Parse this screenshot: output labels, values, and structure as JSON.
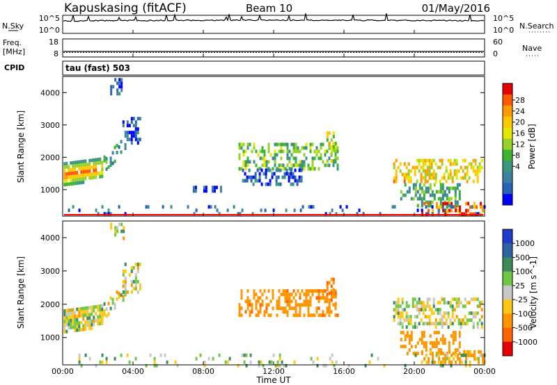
{
  "header": {
    "station": "Kapuskasing (fitACF)",
    "beam": "Beam 10",
    "date": "01/May/2016"
  },
  "noise_panel": {
    "left_label": "N.Sky",
    "right_label": "N.Search",
    "left_ticks": [
      "10^5",
      "10^0"
    ],
    "right_ticks": [
      "10^5",
      "10^0"
    ]
  },
  "freq_panel": {
    "left_label_1": "Freq.",
    "left_label_2": "[MHz]",
    "right_label": "Nave",
    "left_ticks": [
      "18",
      "8"
    ],
    "right_ticks": [
      "60",
      "0"
    ]
  },
  "cpid": {
    "label": "CPID",
    "mode": "tau (fast) 503"
  },
  "colors": {
    "frame": "#000000",
    "gray_scatter": "#c8c8c8",
    "ground_scatter_line": "#ff0000"
  },
  "chart_data": [
    {
      "type": "heatmap",
      "panel": "power",
      "ylabel": "Slant Range [km]",
      "xlabel": "Time UT",
      "x_ticks": [
        "00:00",
        "04:00",
        "08:00",
        "12:00",
        "16:00",
        "20:00",
        "00:00"
      ],
      "x_range_hours": [
        0,
        24
      ],
      "y_ticks": [
        1000,
        2000,
        3000,
        4000
      ],
      "ylim": [
        180,
        4500
      ],
      "colorbar": {
        "label": "Power [dB]",
        "ticks": [
          "28",
          "24",
          "20",
          "16",
          "12",
          "8",
          "4"
        ],
        "colors": [
          "#e60000",
          "#ff5a00",
          "#ff9b00",
          "#ffc800",
          "#e6e600",
          "#96d228",
          "#3cb432",
          "#3c967d",
          "#3c82a0",
          "#2864b4",
          "#0000ff"
        ]
      },
      "regions": [
        {
          "t0": 0.05,
          "t1": 2.2,
          "r0": 1150,
          "r1": 2100,
          "value": 18,
          "profile": "band"
        },
        {
          "t0": 2.2,
          "t1": 3.6,
          "r0": 1500,
          "r1": 2700,
          "value": 11,
          "profile": "rise"
        },
        {
          "t0": 3.4,
          "t1": 4.4,
          "r0": 2400,
          "r1": 3250,
          "value": 6,
          "profile": "patch"
        },
        {
          "t0": 2.7,
          "t1": 3.5,
          "r0": 3950,
          "r1": 4450,
          "value": 6,
          "profile": "patch"
        },
        {
          "t0": 7.4,
          "t1": 9.0,
          "r0": 980,
          "r1": 1120,
          "value": 5,
          "profile": "patch"
        },
        {
          "t0": 10.0,
          "t1": 15.6,
          "r0": 1650,
          "r1": 2450,
          "value": 14,
          "profile": "patch"
        },
        {
          "t0": 10.2,
          "t1": 13.6,
          "r0": 1200,
          "r1": 1650,
          "value": 6,
          "profile": "patch"
        },
        {
          "t0": 15.0,
          "t1": 15.5,
          "r0": 1850,
          "r1": 2800,
          "value": 18,
          "profile": "patch"
        },
        {
          "t0": 18.8,
          "t1": 23.9,
          "r0": 1300,
          "r1": 1950,
          "value": 20,
          "profile": "patch"
        },
        {
          "t0": 19.2,
          "t1": 22.6,
          "r0": 480,
          "r1": 1200,
          "value": 12,
          "profile": "patch"
        },
        {
          "t0": 20.4,
          "t1": 23.9,
          "r0": 250,
          "r1": 620,
          "value": 26,
          "profile": "patch"
        },
        {
          "t0": 0.3,
          "t1": 24.0,
          "r0": 200,
          "r1": 520,
          "value": 6,
          "profile": "sparse"
        }
      ]
    },
    {
      "type": "heatmap",
      "panel": "velocity",
      "ylabel": "Slant Range [km]",
      "xlabel": "Time UT",
      "x_ticks": [
        "00:00",
        "04:00",
        "08:00",
        "12:00",
        "16:00",
        "20:00",
        "00:00"
      ],
      "x_range_hours": [
        0,
        24
      ],
      "y_ticks": [
        1000,
        2000,
        3000,
        4000
      ],
      "ylim": [
        180,
        4500
      ],
      "colorbar": {
        "label": "Velocity [m s^-1]",
        "ticks": [
          "1000",
          "500",
          "100",
          "25",
          "-25",
          "-100",
          "-500",
          "-1000"
        ],
        "colors": [
          "#1e3cc8",
          "#2d64a0",
          "#3c8c5a",
          "#6ec846",
          "#c8c8c8",
          "#ffc814",
          "#ff9600",
          "#ff6400",
          "#e60000"
        ]
      },
      "regions": [
        {
          "t0": 0.05,
          "t1": 2.2,
          "r0": 1150,
          "r1": 2100,
          "value": 0,
          "profile": "band"
        },
        {
          "t0": 2.2,
          "t1": 3.6,
          "r0": 1500,
          "r1": 2700,
          "value": 0,
          "profile": "rise"
        },
        {
          "t0": 3.4,
          "t1": 4.4,
          "r0": 2400,
          "r1": 3250,
          "value": 0,
          "profile": "patch"
        },
        {
          "t0": 2.7,
          "t1": 3.5,
          "r0": 3950,
          "r1": 4450,
          "value": 0,
          "profile": "patch"
        },
        {
          "t0": 10.0,
          "t1": 15.6,
          "r0": 1650,
          "r1": 2450,
          "value": -400,
          "profile": "patch"
        },
        {
          "t0": 15.0,
          "t1": 15.5,
          "r0": 1850,
          "r1": 2800,
          "value": -450,
          "profile": "patch"
        },
        {
          "t0": 18.8,
          "t1": 23.9,
          "r0": 1300,
          "r1": 2200,
          "value": 0,
          "profile": "patch"
        },
        {
          "t0": 19.2,
          "t1": 22.6,
          "r0": 480,
          "r1": 1200,
          "value": -300,
          "profile": "patch"
        },
        {
          "t0": 20.4,
          "t1": 23.9,
          "r0": 250,
          "r1": 620,
          "value": -150,
          "profile": "patch"
        },
        {
          "t0": 0.3,
          "t1": 24.0,
          "r0": 200,
          "r1": 520,
          "value": 40,
          "profile": "sparse"
        }
      ]
    }
  ]
}
